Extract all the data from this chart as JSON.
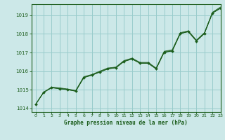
{
  "title": "Graphe pression niveau de la mer (hPa)",
  "bg_color": "#cce8e8",
  "grid_color": "#99cccc",
  "line_color": "#1a5c1a",
  "text_color": "#1a5c1a",
  "xlim": [
    -0.5,
    23
  ],
  "ylim": [
    1013.8,
    1019.6
  ],
  "yticks": [
    1014,
    1015,
    1016,
    1017,
    1018,
    1019
  ],
  "xticks": [
    0,
    1,
    2,
    3,
    4,
    5,
    6,
    7,
    8,
    9,
    10,
    11,
    12,
    13,
    14,
    15,
    16,
    17,
    18,
    19,
    20,
    21,
    22,
    23
  ],
  "line1": [
    1014.2,
    1014.85,
    1015.1,
    1015.05,
    1015.0,
    1014.92,
    1015.65,
    1015.78,
    1015.95,
    1016.12,
    1016.18,
    1016.52,
    1016.65,
    1016.42,
    1016.42,
    1016.12,
    1017.02,
    1017.08,
    1018.02,
    1018.12,
    1017.62,
    1018.02,
    1019.12,
    1019.38
  ],
  "line2": [
    1014.2,
    1014.85,
    1015.12,
    1015.08,
    1015.02,
    1014.94,
    1015.68,
    1015.8,
    1015.98,
    1016.15,
    1016.2,
    1016.55,
    1016.68,
    1016.45,
    1016.45,
    1016.15,
    1017.05,
    1017.12,
    1018.05,
    1018.15,
    1017.65,
    1018.05,
    1019.15,
    1019.42
  ],
  "line3": [
    1014.2,
    1014.87,
    1015.14,
    1015.1,
    1015.04,
    1014.96,
    1015.7,
    1015.82,
    1016.0,
    1016.17,
    1016.22,
    1016.57,
    1016.7,
    1016.47,
    1016.47,
    1016.17,
    1017.07,
    1017.15,
    1018.07,
    1018.17,
    1017.67,
    1018.07,
    1019.17,
    1019.45
  ],
  "main_jagged": [
    1014.2,
    1014.85,
    1015.12,
    1015.05,
    1015.0,
    1014.92,
    1015.65,
    1015.78,
    1015.95,
    1016.12,
    1016.18,
    1016.52,
    1016.65,
    1016.42,
    1016.42,
    1016.12,
    1017.02,
    1017.08,
    1018.02,
    1018.12,
    1017.62,
    1018.02,
    1019.12,
    1019.38
  ]
}
